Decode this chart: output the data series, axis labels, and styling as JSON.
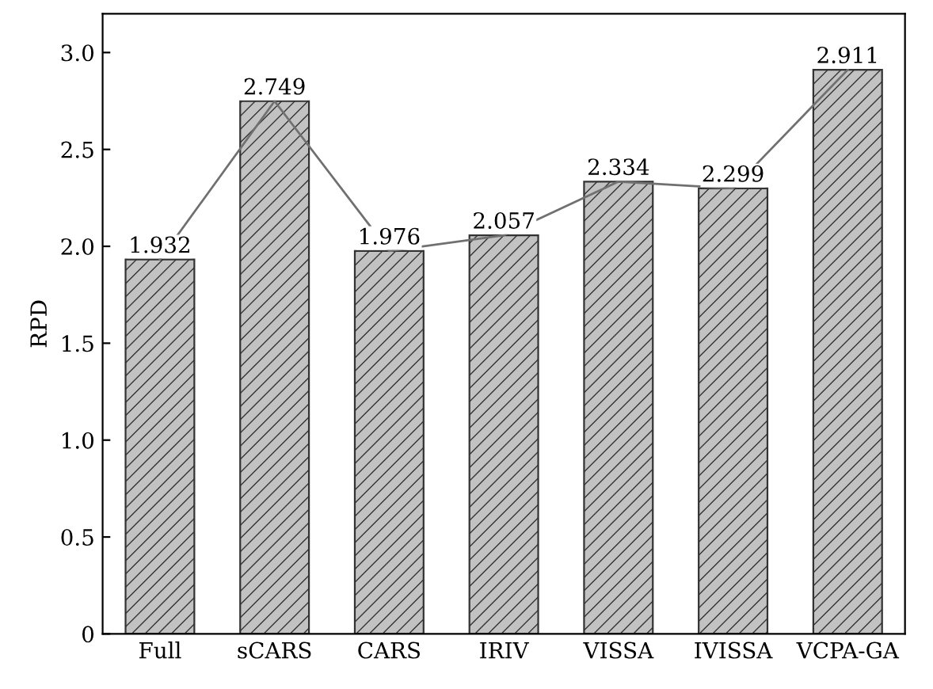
{
  "chart_data": {
    "type": "bar",
    "ylabel": "RPD",
    "categories": [
      "Full",
      "sCARS",
      "CARS",
      "IRIV",
      "VISSA",
      "IVISSA",
      "VCPA-GA"
    ],
    "series": [
      {
        "color": "#333333",
        "values": [
          1.932,
          2.749,
          1.976,
          2.057,
          2.334,
          2.299,
          2.911
        ],
        "value_labels": [
          "1.932",
          "2.749",
          "1.976",
          "2.057",
          "2.334",
          "2.299",
          "2.911"
        ]
      },
      {
        "type": "line",
        "color": "#707070",
        "values": [
          1.932,
          2.749,
          1.976,
          2.057,
          2.334,
          2.299,
          2.911
        ]
      }
    ],
    "grid": false,
    "ylim": [
      0,
      3.2
    ],
    "yticks": [
      0,
      {
        "value": 0.5,
        "label": "0.5"
      },
      {
        "value": 1,
        "label": "1.0"
      },
      {
        "value": 1.5,
        "label": "1.5"
      },
      {
        "value": 2,
        "label": "2.0"
      },
      {
        "value": 2.5,
        "label": "2.5"
      },
      {
        "value": 3,
        "label": "3.0"
      }
    ]
  }
}
